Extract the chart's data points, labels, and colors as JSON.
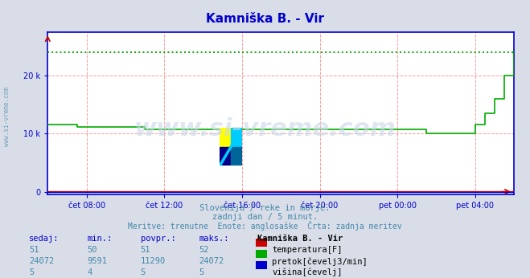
{
  "title": "Kamniška B. - Vir",
  "title_color": "#0000cc",
  "title_fontsize": 11,
  "bg_color": "#d8dde8",
  "plot_bg_color": "#ffffff",
  "axis_color": "#0000cc",
  "grid_color": "#ff8888",
  "grid_style": "--",
  "xlabel_texts": [
    "čet 08:00",
    "čet 12:00",
    "čet 16:00",
    "čet 20:00",
    "pet 00:00",
    "pet 04:00"
  ],
  "xtick_positions": [
    2,
    6,
    10,
    14,
    18,
    22
  ],
  "ylabel_texts": [
    "0",
    "10 k",
    "20 k"
  ],
  "ytick_positions": [
    0,
    10000,
    20000
  ],
  "ymax": 27500,
  "ymin": -500,
  "xmin": 0,
  "xmax": 24,
  "subtitle1": "Slovenija / reke in morje.",
  "subtitle2": "zadnji dan / 5 minut.",
  "subtitle3": "Meritve: trenutne  Enote: anglosaške  Črta: zadnja meritev",
  "subtitle_color": "#4488aa",
  "sidebar_text": "www.si-vreme.com",
  "sidebar_color": "#4488aa",
  "watermark_text": "www.si-vreme.com",
  "watermark_color": "#c8d8e8",
  "table_headers": [
    "sedaj:",
    "min.:",
    "povpr.:",
    "maks.:",
    "Kamniška B. - Vir"
  ],
  "table_rows": [
    [
      "51",
      "50",
      "51",
      "52",
      "temperatura[F]",
      "#cc0000"
    ],
    [
      "24072",
      "9591",
      "11290",
      "24072",
      "pretok[čevelj3/min]",
      "#00aa00"
    ],
    [
      "5",
      "4",
      "5",
      "5",
      "višina[čevelj]",
      "#0000cc"
    ]
  ],
  "pretok_data_x": [
    0.0,
    0.5,
    1.0,
    1.5,
    2.0,
    2.5,
    3.0,
    3.5,
    4.0,
    4.5,
    5.0,
    5.5,
    6.0,
    6.5,
    7.0,
    7.5,
    8.0,
    8.5,
    9.0,
    9.5,
    10.0,
    10.5,
    11.0,
    11.5,
    12.0,
    12.5,
    13.0,
    13.5,
    14.0,
    14.5,
    15.0,
    15.5,
    16.0,
    16.5,
    17.0,
    17.5,
    18.0,
    18.5,
    19.0,
    19.5,
    20.0,
    20.5,
    21.0,
    21.5,
    22.0,
    22.5,
    23.0,
    23.5,
    24.0
  ],
  "pretok_data_y": [
    11500,
    11500,
    11500,
    11200,
    11200,
    11200,
    11200,
    11200,
    11200,
    11200,
    10700,
    10700,
    10700,
    10700,
    10700,
    10700,
    10700,
    10700,
    10700,
    10700,
    10700,
    10700,
    10700,
    10700,
    10700,
    10700,
    10700,
    10700,
    10700,
    10700,
    10700,
    10700,
    10700,
    10700,
    10700,
    10700,
    10700,
    10700,
    10700,
    10000,
    10000,
    10000,
    10000,
    10000,
    11500,
    13500,
    16000,
    20000,
    24000
  ],
  "pretok_color": "#00aa00",
  "max_line_y": 24072,
  "max_line_color": "#00aa00",
  "temp_data_y": 51,
  "temp_color": "#cc0000",
  "height_data_y": 5,
  "height_color": "#0000cc",
  "arrow_color": "#cc0000"
}
